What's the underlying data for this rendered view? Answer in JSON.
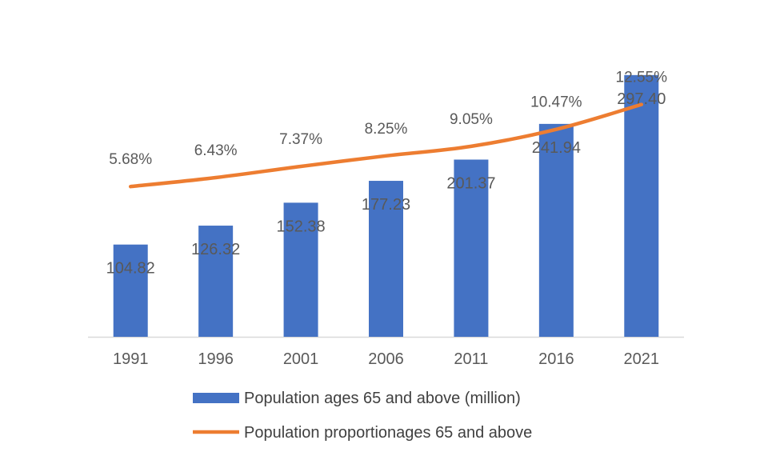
{
  "chart_data": {
    "type": "bar",
    "categories": [
      "1991",
      "1996",
      "2001",
      "2006",
      "2011",
      "2016",
      "2021"
    ],
    "series": [
      {
        "name": "Population ages 65 and above (million)",
        "type": "bar",
        "values": [
          104.82,
          126.32,
          152.38,
          177.23,
          201.37,
          241.94,
          297.4
        ],
        "labels": [
          "104.82",
          "126.32",
          "152.38",
          "177.23",
          "201.37",
          "241.94",
          "297.40"
        ]
      },
      {
        "name": "Population proportionages 65 and above",
        "type": "line",
        "values": [
          5.68,
          6.43,
          7.37,
          8.25,
          9.05,
          10.47,
          12.55
        ],
        "labels": [
          "5.68%",
          "6.43%",
          "7.37%",
          "8.25%",
          "9.05%",
          "10.47%",
          "12.55%"
        ]
      }
    ],
    "title": "",
    "xlabel": "",
    "ylabel": "",
    "ylim": [
      0,
      310
    ],
    "y2lim": [
      0,
      13
    ],
    "grid": false,
    "legend_position": "bottom",
    "colors": {
      "bar": "#4472C4",
      "line": "#ED7D31",
      "axis": "#D9D9D9",
      "text": "#595959"
    }
  }
}
